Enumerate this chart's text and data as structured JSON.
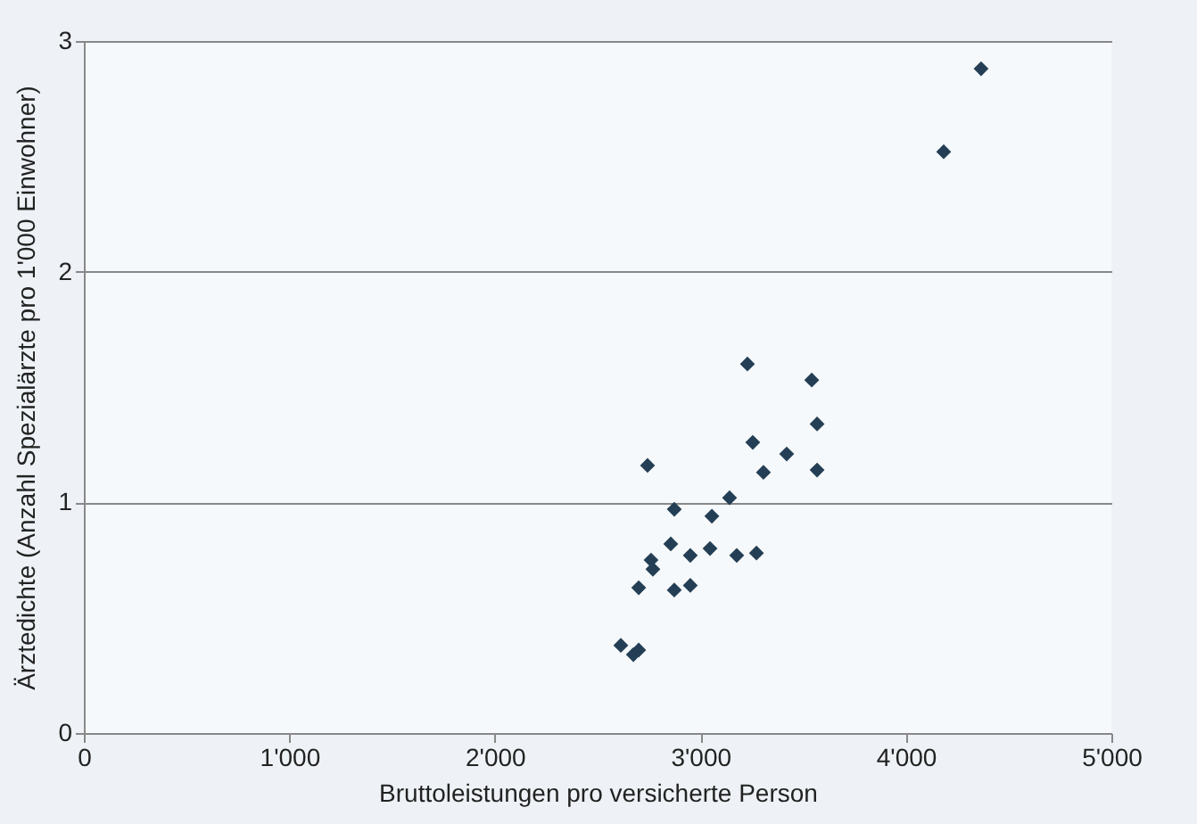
{
  "chart_data": {
    "type": "scatter",
    "xlabel": "Bruttoleistungen pro versicherte Person",
    "ylabel": "Ärztedichte (Anzahl Spezialärzte pro 1'000 Einwohner)",
    "x": [
      2613,
      2674,
      2700,
      2700,
      2743,
      2760,
      2769,
      2856,
      2873,
      2873,
      2951,
      2951,
      3047,
      3056,
      3142,
      3177,
      3229,
      3255,
      3273,
      3307,
      3420,
      3542,
      3568,
      3568,
      4184,
      4366
    ],
    "values": [
      0.38,
      0.34,
      0.36,
      0.63,
      1.16,
      0.75,
      0.71,
      0.82,
      0.97,
      0.62,
      0.77,
      0.64,
      0.8,
      0.94,
      1.02,
      0.77,
      1.6,
      1.26,
      0.78,
      1.13,
      1.21,
      1.53,
      1.34,
      1.14,
      2.52,
      2.88
    ],
    "color": "#243f55",
    "marker": "diamond",
    "xlim": [
      0,
      5000
    ],
    "xticks": [
      {
        "value": 0,
        "label": "0"
      },
      {
        "value": 1000,
        "label": "1'000"
      },
      {
        "value": 2000,
        "label": "2'000"
      },
      {
        "value": 3000,
        "label": "3'000"
      },
      {
        "value": 4000,
        "label": "4'000"
      },
      {
        "value": 5000,
        "label": "5'000"
      }
    ],
    "ylim": [
      0,
      3
    ],
    "yticks": [
      0,
      1,
      2,
      3
    ],
    "grid": "y"
  }
}
